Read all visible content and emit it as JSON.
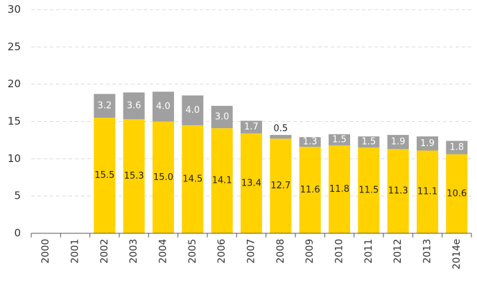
{
  "chart_data": {
    "type": "stacked-bar",
    "categories": [
      "2000",
      "2001",
      "2002",
      "2003",
      "2004",
      "2005",
      "2006",
      "2007",
      "2008",
      "2009",
      "2010",
      "2011",
      "2012",
      "2013",
      "2014e"
    ],
    "series": [
      {
        "color": "#ffd200",
        "values": [
          null,
          null,
          15.5,
          15.3,
          15.0,
          14.5,
          14.1,
          13.4,
          12.7,
          11.6,
          11.8,
          11.5,
          11.3,
          11.1,
          10.6
        ],
        "value_labels": [
          null,
          null,
          "15.5",
          "15.3",
          "15.0",
          "14.5",
          "14.1",
          "13.4",
          "12.7",
          "11.6",
          "11.8",
          "11.5",
          "11.3",
          "11.1",
          "10.6"
        ]
      },
      {
        "color": "#a0a0a0",
        "values": [
          null,
          null,
          3.2,
          3.6,
          4.0,
          4.0,
          3.0,
          1.7,
          0.5,
          1.3,
          1.5,
          1.5,
          1.9,
          1.9,
          1.8
        ],
        "value_labels": [
          null,
          null,
          "3.2",
          "3.6",
          "4.0",
          "4.0",
          "3.0",
          "1.7",
          "0.5",
          "1.3",
          "1.5",
          "1.5",
          "1.9",
          "1.9",
          "1.8"
        ]
      }
    ],
    "ylim": [
      0,
      30
    ],
    "yticks": [
      0,
      5,
      10,
      15,
      20,
      25,
      30
    ],
    "grid": true
  }
}
